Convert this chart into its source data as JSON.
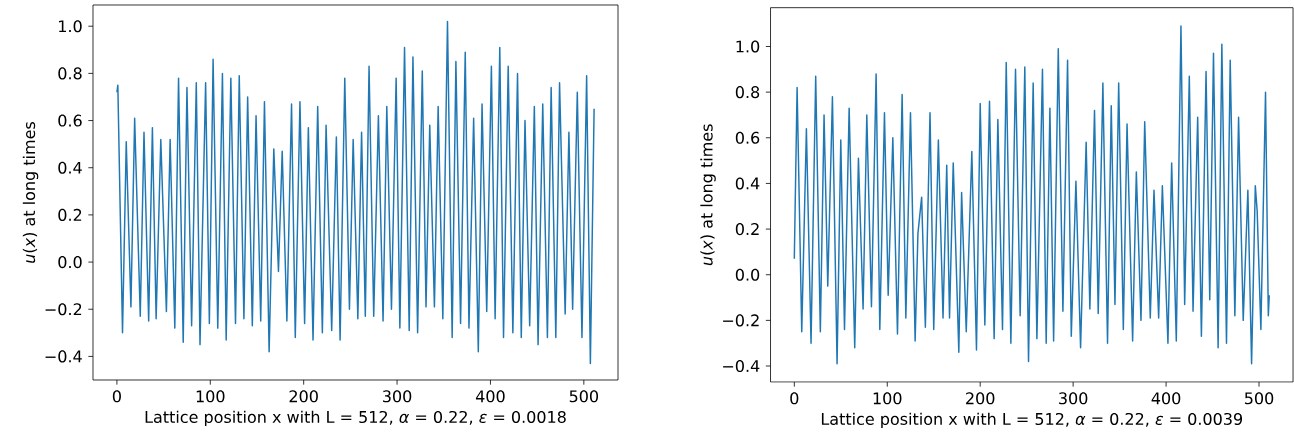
{
  "chart_data": [
    {
      "type": "line",
      "xlabel": "Lattice position x with L = 512, *α* = 0.22, *ε* = 0.0018",
      "ylabel": "*u*(*x*) at long times",
      "xlim": [
        -25.6,
        536.6
      ],
      "ylim": [
        -0.5,
        1.09
      ],
      "xticks": [
        0,
        100,
        200,
        300,
        400,
        500
      ],
      "yticks": [
        {
          "value": -0.4,
          "label": "−0.4"
        },
        {
          "value": -0.2,
          "label": "−0.2"
        },
        {
          "value": 0,
          "label": "0.0"
        },
        0.2,
        0.4,
        0.6,
        0.8,
        {
          "value": 1,
          "label": "1.0"
        }
      ],
      "series": [
        {
          "color": "#1f77b4",
          "x": [
            0,
            1,
            6,
            10,
            15,
            19,
            25,
            29,
            34,
            38,
            42,
            47,
            53,
            57,
            62,
            66,
            71,
            75,
            80,
            85,
            89,
            95,
            99,
            103,
            108,
            113,
            117,
            122,
            127,
            131,
            136,
            140,
            145,
            149,
            154,
            158,
            163,
            168,
            173,
            177,
            182,
            187,
            191,
            196,
            201,
            205,
            210,
            215,
            220,
            224,
            230,
            235,
            239,
            244,
            249,
            253,
            258,
            262,
            266,
            270,
            275,
            280,
            285,
            289,
            294,
            299,
            303,
            308,
            313,
            317,
            322,
            327,
            331,
            335,
            340,
            344,
            349,
            354,
            359,
            363,
            368,
            373,
            377,
            382,
            387,
            391,
            396,
            401,
            405,
            410,
            414,
            419,
            424,
            429,
            433,
            437,
            442,
            447,
            451,
            456,
            461,
            465,
            470,
            474,
            480,
            484,
            488,
            493,
            498,
            503,
            507,
            511
          ],
          "values": [
            0.72,
            0.75,
            -0.3,
            0.51,
            -0.19,
            0.61,
            -0.23,
            0.55,
            -0.25,
            0.57,
            -0.24,
            0.52,
            -0.21,
            0.52,
            -0.28,
            0.78,
            -0.34,
            0.74,
            -0.27,
            0.76,
            -0.35,
            0.76,
            -0.26,
            0.86,
            -0.28,
            0.8,
            -0.33,
            0.78,
            -0.26,
            0.79,
            -0.24,
            0.7,
            -0.27,
            0.62,
            -0.25,
            0.68,
            -0.38,
            0.48,
            -0.04,
            0.47,
            -0.25,
            0.67,
            -0.32,
            0.68,
            -0.26,
            0.57,
            -0.33,
            0.66,
            -0.3,
            0.58,
            -0.29,
            0.53,
            -0.33,
            0.78,
            -0.2,
            0.52,
            -0.24,
            0.55,
            -0.23,
            0.83,
            -0.23,
            0.62,
            -0.25,
            0.66,
            -0.2,
            0.78,
            -0.28,
            0.91,
            -0.29,
            0.87,
            -0.3,
            0.81,
            -0.19,
            0.58,
            -0.19,
            0.66,
            -0.24,
            1.02,
            -0.32,
            0.85,
            -0.26,
            0.89,
            -0.28,
            0.61,
            -0.38,
            0.67,
            -0.21,
            0.83,
            -0.24,
            0.91,
            -0.32,
            0.83,
            -0.3,
            0.8,
            -0.32,
            0.6,
            -0.27,
            0.66,
            -0.35,
            0.67,
            -0.32,
            0.74,
            -0.32,
            0.76,
            -0.22,
            0.55,
            -0.2,
            0.72,
            -0.32,
            0.79,
            -0.43,
            0.65
          ]
        }
      ]
    },
    {
      "type": "line",
      "xlabel": "Lattice position x with L = 512, *α* = 0.22, *ε* = 0.0039",
      "ylabel": "*u*(*x*) at long times",
      "xlim": [
        -25.6,
        536.6
      ],
      "ylim": [
        -0.47,
        1.17
      ],
      "xticks": [
        0,
        100,
        200,
        300,
        400,
        500
      ],
      "yticks": [
        {
          "value": -0.4,
          "label": "−0.4"
        },
        {
          "value": -0.2,
          "label": "−0.2"
        },
        {
          "value": 0,
          "label": "0.0"
        },
        0.2,
        0.4,
        0.6,
        0.8,
        {
          "value": 1,
          "label": "1.0"
        }
      ],
      "series": [
        {
          "color": "#1f77b4",
          "x": [
            0,
            3,
            8,
            13,
            18,
            23,
            28,
            32,
            36,
            41,
            46,
            50,
            54,
            59,
            65,
            69,
            74,
            78,
            83,
            88,
            92,
            97,
            101,
            106,
            111,
            116,
            120,
            125,
            130,
            133,
            137,
            141,
            146,
            150,
            155,
            160,
            164,
            167,
            171,
            177,
            180,
            185,
            191,
            196,
            200,
            205,
            210,
            215,
            219,
            224,
            228,
            233,
            238,
            243,
            248,
            252,
            257,
            261,
            267,
            271,
            275,
            279,
            284,
            289,
            294,
            298,
            303,
            308,
            314,
            318,
            323,
            327,
            332,
            337,
            341,
            345,
            349,
            354,
            358,
            364,
            368,
            373,
            377,
            383,
            387,
            392,
            396,
            402,
            406,
            411,
            416,
            420,
            425,
            429,
            434,
            438,
            443,
            447,
            451,
            456,
            460,
            465,
            469,
            474,
            478,
            483,
            488,
            492,
            496,
            498,
            502,
            507,
            510,
            511
          ],
          "values": [
            0.07,
            0.82,
            -0.25,
            0.64,
            -0.3,
            0.87,
            -0.25,
            0.7,
            -0.05,
            0.78,
            -0.39,
            0.59,
            -0.24,
            0.73,
            -0.32,
            0.51,
            -0.15,
            0.7,
            -0.14,
            0.88,
            -0.24,
            0.71,
            -0.09,
            0.6,
            -0.26,
            0.79,
            -0.19,
            0.71,
            -0.29,
            0.18,
            0.34,
            -0.23,
            0.71,
            -0.24,
            0.59,
            -0.19,
            0.48,
            -0.19,
            0.49,
            -0.34,
            0.36,
            -0.25,
            0.54,
            -0.33,
            0.75,
            -0.22,
            0.76,
            -0.28,
            0.68,
            -0.24,
            0.93,
            -0.3,
            0.9,
            -0.18,
            0.91,
            -0.38,
            0.84,
            -0.28,
            0.9,
            -0.3,
            0.73,
            -0.29,
            0.99,
            -0.16,
            0.94,
            -0.27,
            0.41,
            -0.32,
            0.58,
            -0.15,
            0.72,
            -0.17,
            0.84,
            -0.3,
            0.74,
            -0.13,
            0.84,
            -0.24,
            0.66,
            -0.29,
            0.45,
            -0.2,
            0.67,
            -0.19,
            0.37,
            -0.19,
            0.39,
            -0.3,
            0.49,
            -0.29,
            1.09,
            -0.13,
            0.87,
            -0.16,
            0.69,
            -0.27,
            0.89,
            -0.11,
            0.97,
            -0.32,
            1.01,
            -0.3,
            0.94,
            -0.18,
            0.69,
            -0.2,
            0.37,
            -0.39,
            0.39,
            0.28,
            -0.24,
            0.8,
            -0.18,
            -0.09
          ]
        }
      ]
    }
  ]
}
